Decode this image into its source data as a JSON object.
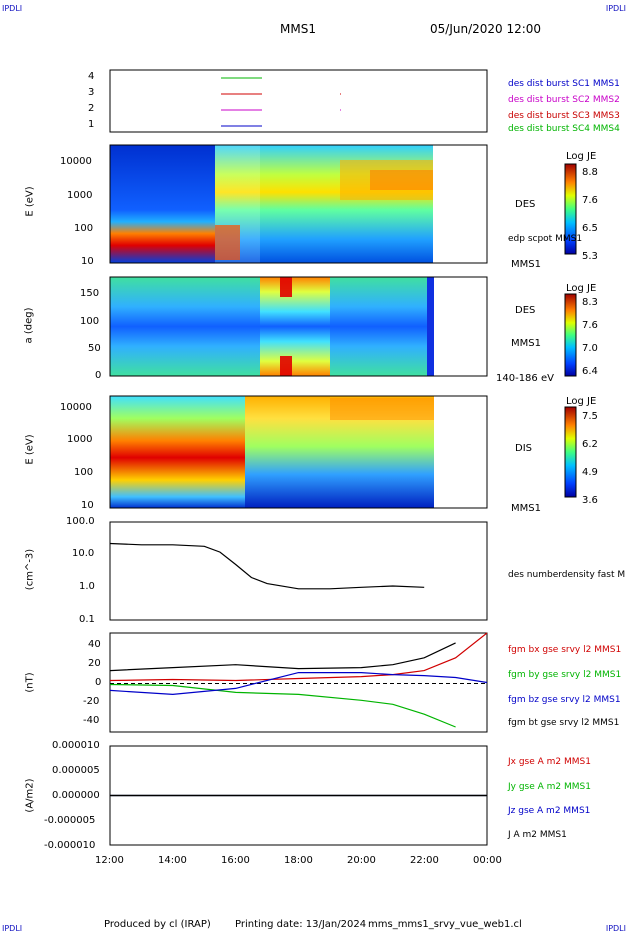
{
  "header": {
    "corner_left_top": "IPDLI",
    "corner_right_top": "IPDLI",
    "corner_left_bottom": "IPDLI",
    "corner_right_bottom": "IPDLI",
    "spacecraft": "MMS1",
    "datetime": "05/Jun/2020 12:00"
  },
  "footer": {
    "produced": "Produced by cl (IRAP)",
    "printing": "Printing date: 13/Jan/2024",
    "filename": "mms_mms1_srvy_vue_web1.cl"
  },
  "time_axis": {
    "ticks": [
      "12:00",
      "14:00",
      "16:00",
      "18:00",
      "20:00",
      "22:00",
      "00:00"
    ]
  },
  "panels": {
    "burst": {
      "yticks": [
        "4",
        "3",
        "2",
        "1"
      ],
      "legend": [
        {
          "text": "des dist burst SC1 MMS1",
          "color": "#0000c8"
        },
        {
          "text": "des dist burst SC2 MMS2",
          "color": "#c800c8"
        },
        {
          "text": "des dist burst SC3 MMS3",
          "color": "#c80000"
        },
        {
          "text": "des dist burst SC4 MMS4",
          "color": "#00b400"
        }
      ]
    },
    "des_energy": {
      "ylabel": "E (eV)",
      "yticks": [
        "10000",
        "1000",
        "100",
        "10"
      ],
      "title": "DES",
      "extra": "edp scpot MMS1",
      "sc": "MMS1",
      "colorbar": {
        "title": "Log JE",
        "ticks": [
          "8.8",
          "7.6",
          "6.5",
          "5.3"
        ]
      }
    },
    "des_pitch": {
      "ylabel": "a (deg)",
      "yticks": [
        "150",
        "100",
        "50",
        "0"
      ],
      "title": "DES",
      "sc": "MMS1",
      "range": "140-186 eV",
      "colorbar": {
        "title": "Log JE",
        "ticks": [
          "8.3",
          "7.6",
          "7.0",
          "6.4"
        ]
      }
    },
    "dis_energy": {
      "ylabel": "E (eV)",
      "yticks": [
        "10000",
        "1000",
        "100",
        "10"
      ],
      "title": "DIS",
      "sc": "MMS1",
      "colorbar": {
        "title": "Log JE",
        "ticks": [
          "7.5",
          "6.2",
          "4.9",
          "3.6"
        ]
      }
    },
    "density": {
      "ylabel": "(cm^-3)",
      "yticks": [
        "100.0",
        "10.0",
        "1.0",
        "0.1"
      ],
      "legend": "des numberdensity fast M"
    },
    "bfield": {
      "ylabel": "(nT)",
      "yticks": [
        "40",
        "20",
        "0",
        "-20",
        "-40"
      ],
      "legend": [
        {
          "text": "fgm bx gse srvy l2 MMS1",
          "color": "#d00000"
        },
        {
          "text": "fgm by gse srvy l2 MMS1",
          "color": "#00b400"
        },
        {
          "text": "fgm bz gse srvy l2 MMS1",
          "color": "#0000c8"
        },
        {
          "text": "fgm bt gse srvy l2 MMS1",
          "color": "#000000"
        }
      ]
    },
    "current": {
      "ylabel": "(A/m2)",
      "yticks": [
        "0.000010",
        "0.000005",
        "0.000000",
        "-0.000005",
        "-0.000010"
      ],
      "legend": [
        {
          "text": "Jx gse A m2 MMS1",
          "color": "#d00000"
        },
        {
          "text": "Jy gse A m2 MMS1",
          "color": "#00b400"
        },
        {
          "text": "Jz gse A m2 MMS1",
          "color": "#0000c8"
        },
        {
          "text": "J A m2 MMS1",
          "color": "#000000"
        }
      ]
    }
  },
  "chart_data": [
    {
      "type": "line",
      "ylabel": "(cm^-3)",
      "yscale": "log",
      "ylim": [
        0.1,
        100
      ],
      "x": [
        "12:00",
        "13:00",
        "14:00",
        "15:00",
        "15:30",
        "16:00",
        "16:30",
        "17:00",
        "18:00",
        "19:00",
        "20:00",
        "21:00",
        "22:00"
      ],
      "series": [
        {
          "name": "des numberdensity fast M",
          "color": "#000000",
          "values": [
            22,
            20,
            20,
            18,
            12,
            5,
            2,
            1.3,
            0.9,
            0.9,
            1.0,
            1.1,
            1.0
          ]
        }
      ]
    },
    {
      "type": "line",
      "ylabel": "(nT)",
      "ylim": [
        -50,
        50
      ],
      "x": [
        "12:00",
        "14:00",
        "16:00",
        "18:00",
        "20:00",
        "21:00",
        "22:00",
        "23:00",
        "00:00"
      ],
      "series": [
        {
          "name": "fgm bx gse srvy l2 MMS1",
          "color": "#d00000",
          "values": [
            2,
            3,
            2,
            4,
            6,
            8,
            12,
            25,
            50
          ]
        },
        {
          "name": "fgm by gse srvy l2 MMS1",
          "color": "#00b400",
          "values": [
            -2,
            -3,
            -10,
            -12,
            -18,
            -22,
            -32,
            -45,
            null
          ]
        },
        {
          "name": "fgm bz gse srvy l2 MMS1",
          "color": "#0000c8",
          "values": [
            -8,
            -12,
            -6,
            10,
            10,
            8,
            7,
            5,
            0
          ]
        },
        {
          "name": "fgm bt gse srvy l2 MMS1",
          "color": "#000000",
          "values": [
            12,
            15,
            18,
            14,
            15,
            18,
            25,
            40,
            null
          ]
        }
      ]
    },
    {
      "type": "line",
      "ylabel": "(A/m2)",
      "ylim": [
        -1e-05,
        1e-05
      ],
      "x": [
        "12:00",
        "16:00",
        "20:00",
        "00:00"
      ],
      "series": [
        {
          "name": "Jx gse A m2 MMS1",
          "color": "#d00000",
          "values": [
            0,
            0,
            0,
            0
          ]
        },
        {
          "name": "Jy gse A m2 MMS1",
          "color": "#00b400",
          "values": [
            0,
            0,
            0,
            0
          ]
        },
        {
          "name": "Jz gse A m2 MMS1",
          "color": "#0000c8",
          "values": [
            0,
            0,
            0,
            0
          ]
        },
        {
          "name": "J A m2 MMS1",
          "color": "#000000",
          "values": [
            0,
            0,
            0,
            0
          ]
        }
      ]
    }
  ]
}
